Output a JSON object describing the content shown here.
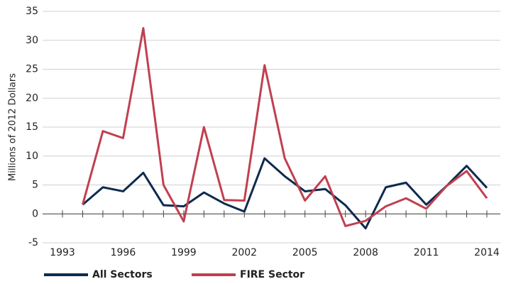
{
  "chart_data": {
    "type": "line",
    "y_label": "Millions of 2012 Dollars",
    "x": [
      1994,
      1995,
      1996,
      1997,
      1998,
      1999,
      2000,
      2001,
      2002,
      2003,
      2004,
      2005,
      2006,
      2007,
      2008,
      2009,
      2010,
      2011,
      2012,
      2013,
      2014
    ],
    "series": [
      {
        "name": "All Sectors",
        "color": "#0d2a4f",
        "values": [
          1.6,
          4.6,
          3.9,
          7.1,
          1.5,
          1.3,
          3.7,
          1.8,
          0.4,
          9.6,
          6.5,
          3.9,
          4.3,
          1.5,
          -2.5,
          4.6,
          5.4,
          1.6,
          4.8,
          8.3,
          4.5
        ]
      },
      {
        "name": "FIRE Sector",
        "color": "#c0404f",
        "values": [
          1.6,
          14.3,
          13.1,
          32.1,
          5.0,
          -1.3,
          15.0,
          2.4,
          2.3,
          25.7,
          9.6,
          2.3,
          6.5,
          -2.1,
          -1.2,
          1.3,
          2.7,
          0.9,
          4.8,
          7.4,
          2.7
        ]
      }
    ],
    "xlim": [
      1993,
      2014
    ],
    "xticks": [
      1993,
      1996,
      1999,
      2002,
      2005,
      2008,
      2011,
      2014
    ],
    "xticks_minor": [
      1994,
      1995,
      1997,
      1998,
      2000,
      2001,
      2003,
      2004,
      2006,
      2007,
      2009,
      2010,
      2012,
      2013
    ],
    "ylim": [
      -5,
      35
    ],
    "yticks": [
      -5,
      0,
      5,
      10,
      15,
      20,
      25,
      30,
      35
    ],
    "grid": true,
    "legend": "bottom"
  }
}
